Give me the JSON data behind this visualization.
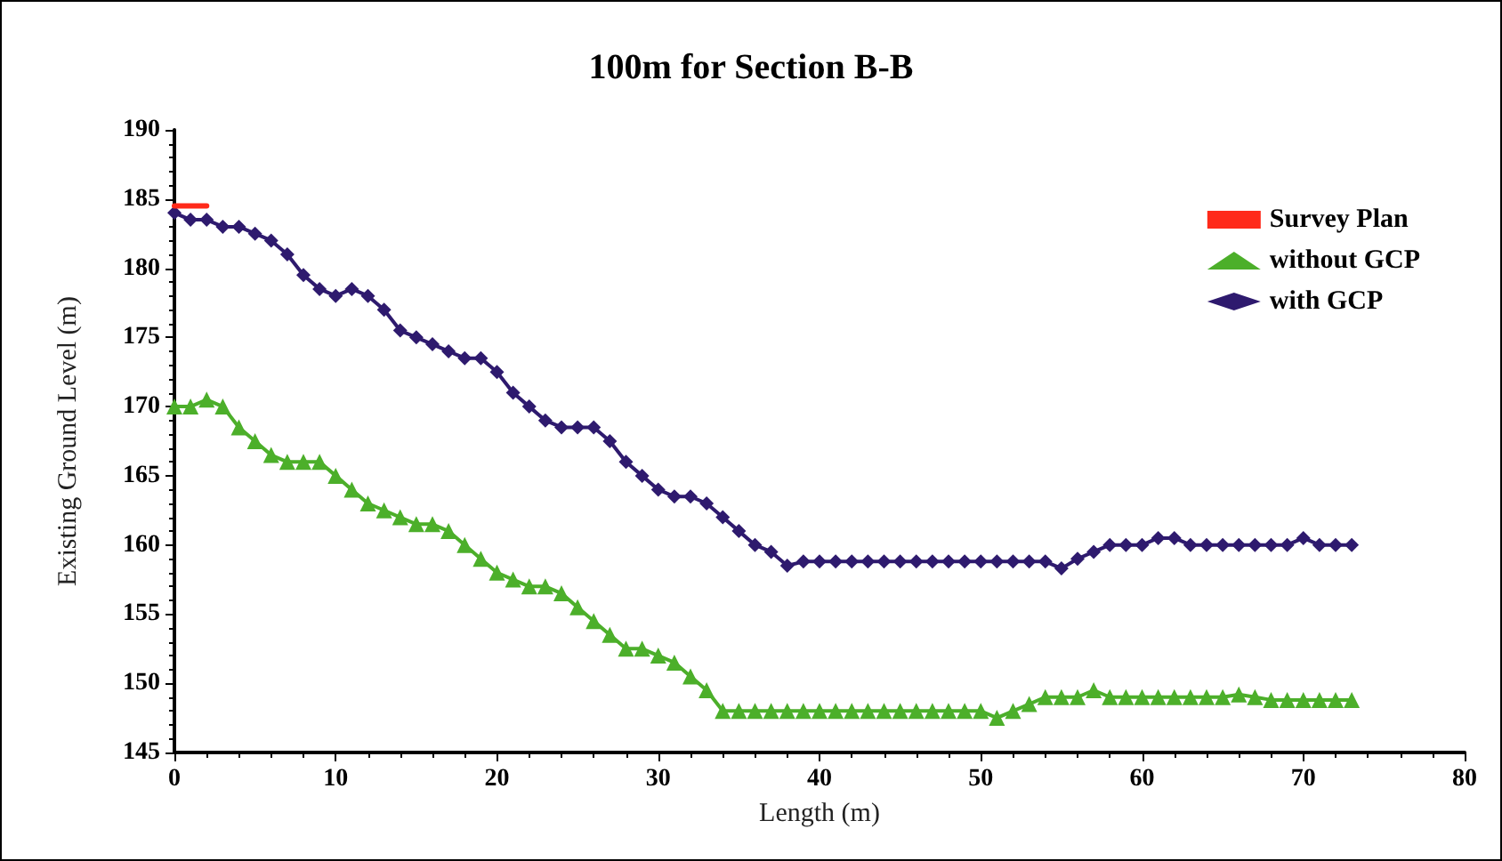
{
  "chart_data": {
    "type": "line",
    "title": "100m for Section B-B",
    "xlabel": "Length (m)",
    "ylabel": "Existing Ground Level (m)",
    "xlim": [
      0,
      80
    ],
    "xticks": [
      0,
      10,
      20,
      30,
      40,
      50,
      60,
      70,
      80
    ],
    "ylim": [
      145,
      190
    ],
    "yticks": [
      145,
      150,
      155,
      160,
      165,
      170,
      175,
      180,
      185,
      190
    ],
    "grid": false,
    "legend": "top right",
    "series": [
      {
        "name": "Survey Plan",
        "color": "#ff2a1a",
        "marker": "none",
        "x": [
          0,
          2
        ],
        "values": [
          184.5,
          184.5
        ]
      },
      {
        "name": "without GCP",
        "color": "#4caf2a",
        "marker": "triangle",
        "x": [
          0,
          1,
          2,
          3,
          4,
          5,
          6,
          7,
          8,
          9,
          10,
          11,
          12,
          13,
          14,
          15,
          16,
          17,
          18,
          19,
          20,
          21,
          22,
          23,
          24,
          25,
          26,
          27,
          28,
          29,
          30,
          31,
          32,
          33,
          34,
          35,
          36,
          37,
          38,
          39,
          40,
          41,
          42,
          43,
          44,
          45,
          46,
          47,
          48,
          49,
          50,
          51,
          52,
          53,
          54,
          55,
          56,
          57,
          58,
          59,
          60,
          61,
          62,
          63,
          64,
          65,
          66,
          67,
          68,
          69,
          70,
          71,
          72,
          73
        ],
        "values": [
          170,
          170,
          170.5,
          170,
          168.5,
          167.5,
          166.5,
          166,
          166,
          166,
          165,
          164,
          163,
          162.5,
          162,
          161.5,
          161.5,
          161,
          160,
          159,
          158,
          157.5,
          157,
          157,
          156.5,
          155.5,
          154.5,
          153.5,
          152.5,
          152.5,
          152,
          151.5,
          150.5,
          149.5,
          148,
          148,
          148,
          148,
          148,
          148,
          148,
          148,
          148,
          148,
          148,
          148,
          148,
          148,
          148,
          148,
          148,
          147.5,
          148,
          148.5,
          149,
          149,
          149,
          149.5,
          149,
          149,
          149,
          149,
          149,
          149,
          149,
          149,
          149.2,
          149,
          148.8,
          148.8,
          148.8,
          148.8,
          148.8,
          148.8
        ]
      },
      {
        "name": "with GCP",
        "color": "#2e1a6e",
        "marker": "diamond",
        "x": [
          0,
          1,
          2,
          3,
          4,
          5,
          6,
          7,
          8,
          9,
          10,
          11,
          12,
          13,
          14,
          15,
          16,
          17,
          18,
          19,
          20,
          21,
          22,
          23,
          24,
          25,
          26,
          27,
          28,
          29,
          30,
          31,
          32,
          33,
          34,
          35,
          36,
          37,
          38,
          39,
          40,
          41,
          42,
          43,
          44,
          45,
          46,
          47,
          48,
          49,
          50,
          51,
          52,
          53,
          54,
          55,
          56,
          57,
          58,
          59,
          60,
          61,
          62,
          63,
          64,
          65,
          66,
          67,
          68,
          69,
          70,
          71,
          72,
          73
        ],
        "values": [
          184,
          183.5,
          183.5,
          183,
          183,
          182.5,
          182,
          181,
          179.5,
          178.5,
          178,
          178.5,
          178,
          177,
          175.5,
          175,
          174.5,
          174,
          173.5,
          173.5,
          172.5,
          171,
          170,
          169,
          168.5,
          168.5,
          168.5,
          167.5,
          166,
          165,
          164,
          163.5,
          163.5,
          163,
          162,
          161,
          160,
          159.5,
          158.5,
          158.8,
          158.8,
          158.8,
          158.8,
          158.8,
          158.8,
          158.8,
          158.8,
          158.8,
          158.8,
          158.8,
          158.8,
          158.8,
          158.8,
          158.8,
          158.8,
          158.3,
          159,
          159.5,
          160,
          160,
          160,
          160.5,
          160.5,
          160,
          160,
          160,
          160,
          160,
          160,
          160,
          160.5,
          160,
          160,
          160
        ]
      }
    ]
  }
}
